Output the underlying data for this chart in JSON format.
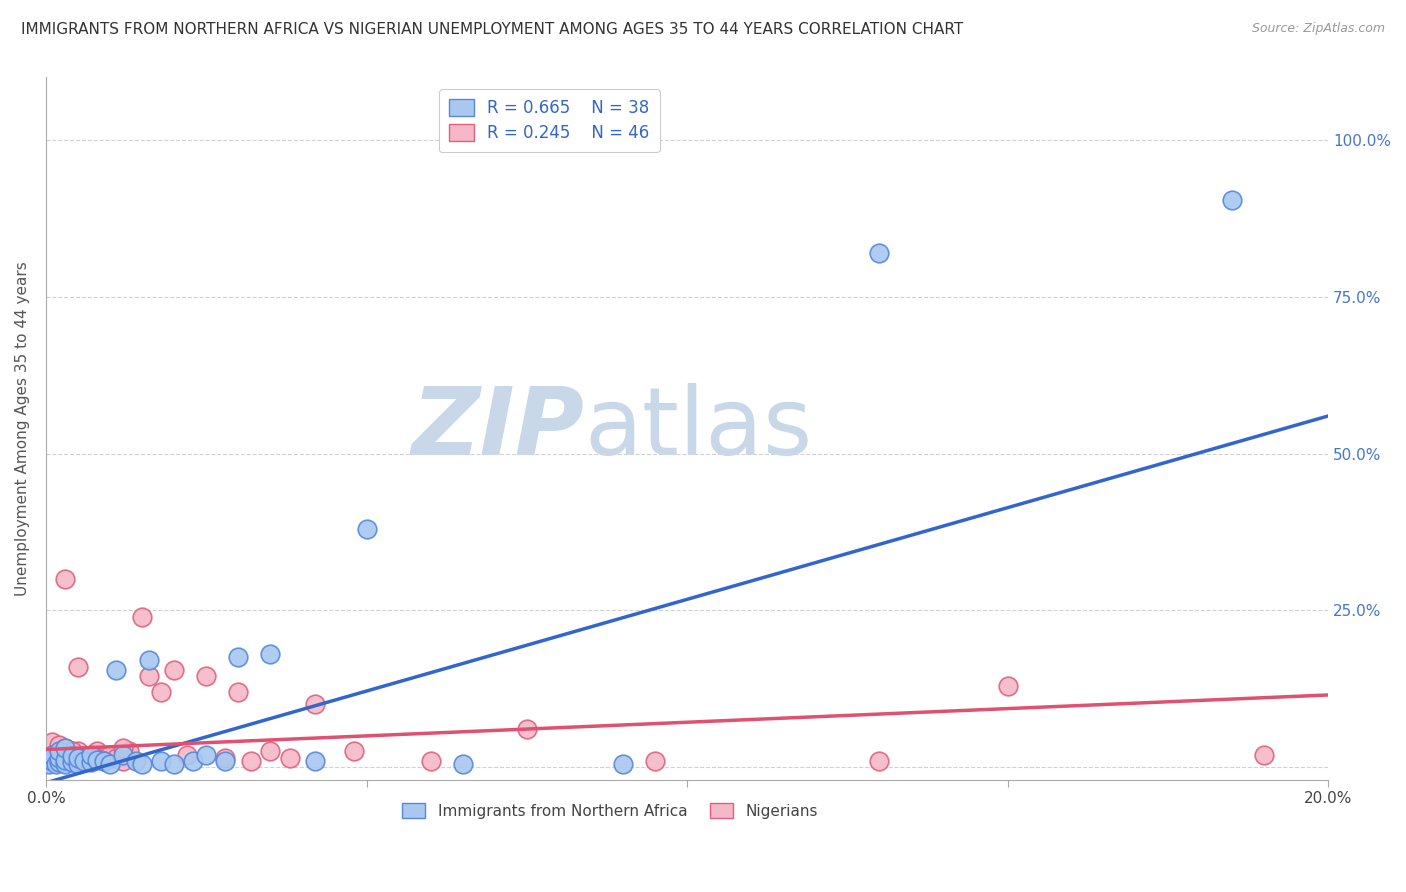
{
  "title": "IMMIGRANTS FROM NORTHERN AFRICA VS NIGERIAN UNEMPLOYMENT AMONG AGES 35 TO 44 YEARS CORRELATION CHART",
  "source": "Source: ZipAtlas.com",
  "ylabel": "Unemployment Among Ages 35 to 44 years",
  "xlim": [
    0.0,
    0.2
  ],
  "ylim": [
    -0.02,
    1.1
  ],
  "ytick_values": [
    0.0,
    0.25,
    0.5,
    0.75,
    1.0
  ],
  "ytick_labels_right": [
    "",
    "25.0%",
    "50.0%",
    "75.0%",
    "100.0%"
  ],
  "xtick_values": [
    0.0,
    0.05,
    0.1,
    0.15,
    0.2
  ],
  "xtick_labels": [
    "0.0%",
    "",
    "",
    "",
    "20.0%"
  ],
  "blue_R": "R = 0.665",
  "blue_N": "N = 38",
  "pink_R": "R = 0.245",
  "pink_N": "N = 46",
  "legend1": "Immigrants from Northern Africa",
  "legend2": "Nigerians",
  "blue_fill": "#A8C8F0",
  "blue_edge": "#5588DD",
  "pink_fill": "#F5B8C8",
  "pink_edge": "#E06080",
  "blue_line": "#3366CC",
  "pink_line": "#E05070",
  "blue_scatter_x": [
    0.0005,
    0.001,
    0.001,
    0.0015,
    0.002,
    0.002,
    0.002,
    0.003,
    0.003,
    0.003,
    0.004,
    0.004,
    0.005,
    0.005,
    0.006,
    0.007,
    0.007,
    0.008,
    0.009,
    0.01,
    0.011,
    0.012,
    0.014,
    0.015,
    0.016,
    0.018,
    0.02,
    0.023,
    0.025,
    0.028,
    0.03,
    0.035,
    0.042,
    0.05,
    0.065,
    0.09,
    0.13,
    0.185
  ],
  "blue_scatter_y": [
    0.005,
    0.01,
    0.02,
    0.005,
    0.008,
    0.015,
    0.025,
    0.005,
    0.012,
    0.03,
    0.008,
    0.018,
    0.005,
    0.015,
    0.01,
    0.008,
    0.02,
    0.012,
    0.01,
    0.005,
    0.155,
    0.02,
    0.01,
    0.005,
    0.17,
    0.01,
    0.005,
    0.01,
    0.02,
    0.01,
    0.175,
    0.18,
    0.01,
    0.38,
    0.005,
    0.005,
    0.82,
    0.905
  ],
  "pink_scatter_x": [
    0.0005,
    0.001,
    0.001,
    0.0015,
    0.002,
    0.002,
    0.003,
    0.003,
    0.004,
    0.004,
    0.005,
    0.005,
    0.006,
    0.007,
    0.007,
    0.008,
    0.008,
    0.009,
    0.01,
    0.011,
    0.012,
    0.013,
    0.015,
    0.016,
    0.018,
    0.02,
    0.022,
    0.025,
    0.028,
    0.03,
    0.032,
    0.035,
    0.038,
    0.042,
    0.048,
    0.06,
    0.075,
    0.095,
    0.13,
    0.19,
    0.003,
    0.004,
    0.005,
    0.009,
    0.012,
    0.15
  ],
  "pink_scatter_y": [
    0.01,
    0.02,
    0.04,
    0.01,
    0.025,
    0.035,
    0.01,
    0.03,
    0.015,
    0.025,
    0.01,
    0.025,
    0.015,
    0.01,
    0.02,
    0.025,
    0.015,
    0.01,
    0.02,
    0.015,
    0.01,
    0.025,
    0.24,
    0.145,
    0.12,
    0.155,
    0.02,
    0.145,
    0.015,
    0.12,
    0.01,
    0.025,
    0.015,
    0.1,
    0.025,
    0.01,
    0.06,
    0.01,
    0.01,
    0.02,
    0.3,
    0.025,
    0.16,
    0.01,
    0.03,
    0.13
  ],
  "blue_trend_x": [
    0.0,
    0.2
  ],
  "blue_trend_y": [
    -0.025,
    0.56
  ],
  "pink_trend_x": [
    0.0,
    0.2
  ],
  "pink_trend_y": [
    0.028,
    0.115
  ],
  "watermark_zip": "ZIP",
  "watermark_atlas": "atlas",
  "watermark_color": "#C8D8E8",
  "background_color": "#FFFFFF",
  "grid_color": "#CCCCCC",
  "title_color": "#333333",
  "axis_label_color": "#555555",
  "tick_label_color_right": "#4477CC",
  "legend_text_color": "#3366CC"
}
